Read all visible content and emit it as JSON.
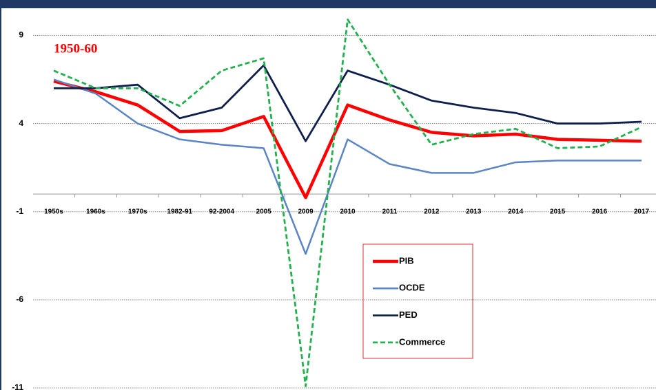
{
  "chart_data": {
    "type": "line",
    "annotation": "1950-60",
    "categories": [
      "1950s",
      "1960s",
      "1970s",
      "1982-91",
      "92-2004",
      "2005",
      "2009",
      "2010",
      "2011",
      "2012",
      "2013",
      "2014",
      "2015",
      "2016",
      "2017"
    ],
    "series": [
      {
        "name": "PIB",
        "color": "#ff0000",
        "values": [
          6.4,
          5.8,
          5.05,
          3.55,
          3.6,
          4.4,
          -0.2,
          5.05,
          4.2,
          3.5,
          3.3,
          3.4,
          3.1,
          3.05,
          3.0
        ]
      },
      {
        "name": "OCDE",
        "color": "#5b84c4",
        "values": [
          6.5,
          5.7,
          4.0,
          3.1,
          2.8,
          2.6,
          -3.4,
          3.1,
          1.7,
          1.2,
          1.2,
          1.8,
          1.9,
          1.9,
          1.9
        ]
      },
      {
        "name": "PED",
        "color": "#0f1f4d",
        "values": [
          6.0,
          6.0,
          6.2,
          4.3,
          4.9,
          7.3,
          3.0,
          7.0,
          6.2,
          5.3,
          4.9,
          4.6,
          4.0,
          4.0,
          4.1
        ]
      },
      {
        "name": "Commerce",
        "color": "#22b14c",
        "dashed": true,
        "values": [
          7.0,
          6.0,
          6.0,
          5.0,
          7.0,
          7.7,
          -10.9,
          9.9,
          6.2,
          2.8,
          3.4,
          3.7,
          2.6,
          2.7,
          3.8
        ]
      }
    ],
    "ylim": [
      -11,
      10.5
    ],
    "yticks": [
      -11,
      -6,
      -1,
      4,
      9
    ],
    "grid": true
  }
}
